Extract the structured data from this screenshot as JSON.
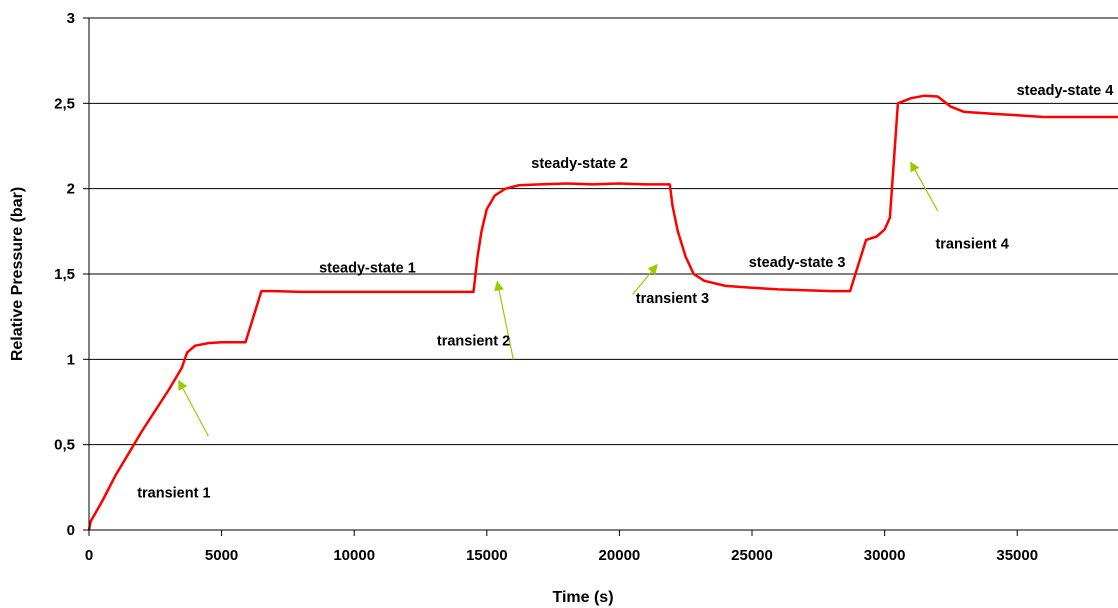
{
  "chart_data": {
    "type": "line",
    "title": "",
    "xlabel": "Time (s)",
    "ylabel": "Relative Pressure (bar)",
    "xlim": [
      0,
      38800
    ],
    "ylim": [
      0,
      3
    ],
    "grid": "horizontal",
    "x_ticks": [
      0,
      5000,
      10000,
      15000,
      20000,
      25000,
      30000,
      35000
    ],
    "x_tick_labels": [
      "0",
      "5000",
      "10000",
      "15000",
      "20000",
      "25000",
      "30000",
      "35000"
    ],
    "y_ticks": [
      0,
      0.5,
      1,
      1.5,
      2,
      2.5,
      3
    ],
    "y_tick_labels": [
      "0",
      "0,5",
      "1",
      "1,5",
      "2",
      "2,5",
      "3"
    ],
    "series": [
      {
        "color": "#ff0000",
        "points": [
          [
            0,
            0
          ],
          [
            60,
            0.05
          ],
          [
            500,
            0.17
          ],
          [
            1000,
            0.32
          ],
          [
            1500,
            0.45
          ],
          [
            2000,
            0.58
          ],
          [
            2500,
            0.7
          ],
          [
            3000,
            0.82
          ],
          [
            3500,
            0.95
          ],
          [
            3700,
            1.04
          ],
          [
            4000,
            1.08
          ],
          [
            4500,
            1.095
          ],
          [
            5000,
            1.1
          ],
          [
            5500,
            1.1
          ],
          [
            5900,
            1.1
          ],
          [
            6100,
            1.2
          ],
          [
            6300,
            1.3
          ],
          [
            6500,
            1.4
          ],
          [
            7000,
            1.4
          ],
          [
            8000,
            1.395
          ],
          [
            10000,
            1.395
          ],
          [
            12000,
            1.395
          ],
          [
            14000,
            1.395
          ],
          [
            14500,
            1.395
          ],
          [
            14650,
            1.6
          ],
          [
            14800,
            1.75
          ],
          [
            15000,
            1.88
          ],
          [
            15300,
            1.96
          ],
          [
            15700,
            2.0
          ],
          [
            16200,
            2.02
          ],
          [
            17000,
            2.025
          ],
          [
            18000,
            2.03
          ],
          [
            19000,
            2.025
          ],
          [
            20000,
            2.03
          ],
          [
            21000,
            2.025
          ],
          [
            21900,
            2.025
          ],
          [
            22000,
            1.9
          ],
          [
            22200,
            1.75
          ],
          [
            22500,
            1.6
          ],
          [
            22800,
            1.5
          ],
          [
            23200,
            1.46
          ],
          [
            24000,
            1.43
          ],
          [
            25000,
            1.42
          ],
          [
            26000,
            1.41
          ],
          [
            27000,
            1.405
          ],
          [
            28000,
            1.4
          ],
          [
            28700,
            1.4
          ],
          [
            28900,
            1.5
          ],
          [
            29300,
            1.7
          ],
          [
            29700,
            1.72
          ],
          [
            30000,
            1.76
          ],
          [
            30200,
            1.83
          ],
          [
            30500,
            2.5
          ],
          [
            31000,
            2.53
          ],
          [
            31500,
            2.545
          ],
          [
            32000,
            2.54
          ],
          [
            32500,
            2.48
          ],
          [
            33000,
            2.45
          ],
          [
            34000,
            2.44
          ],
          [
            35000,
            2.43
          ],
          [
            36000,
            2.42
          ],
          [
            38800,
            2.42
          ]
        ]
      }
    ],
    "annotations": [
      {
        "text": "transient 1",
        "x": 3200,
        "y": 0.19
      },
      {
        "text": "transient 2",
        "x": 14500,
        "y": 1.08
      },
      {
        "text": "transient 3",
        "x": 22000,
        "y": 1.33
      },
      {
        "text": "transient 4",
        "x": 33300,
        "y": 1.65
      },
      {
        "text": "steady-state 1",
        "x": 10500,
        "y": 1.51
      },
      {
        "text": "steady-state 2",
        "x": 18500,
        "y": 2.12
      },
      {
        "text": "steady-state 3",
        "x": 26700,
        "y": 1.54
      },
      {
        "text": "steady-state 4",
        "x": 36800,
        "y": 2.55
      }
    ],
    "arrows": [
      {
        "from": [
          4500,
          0.55
        ],
        "to": [
          3400,
          0.87
        ],
        "color": "#99cc00"
      },
      {
        "from": [
          16000,
          1.0
        ],
        "to": [
          15400,
          1.45
        ],
        "color": "#99cc00"
      },
      {
        "from": [
          20500,
          1.38
        ],
        "to": [
          21400,
          1.55
        ],
        "color": "#99cc00"
      },
      {
        "from": [
          32000,
          1.87
        ],
        "to": [
          31000,
          2.15
        ],
        "color": "#99cc00"
      }
    ]
  }
}
